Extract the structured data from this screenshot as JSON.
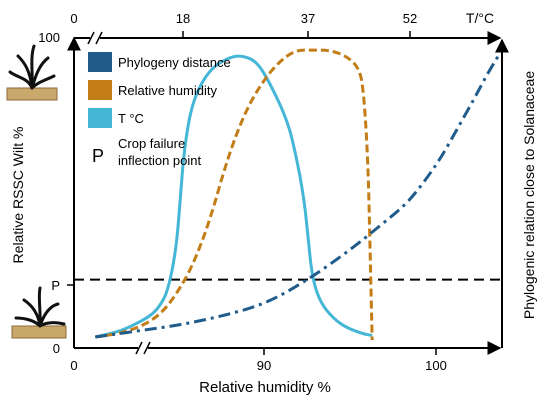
{
  "chart_data": {
    "type": "line",
    "top_axis": {
      "label": "T/°C",
      "ticks": [
        "0",
        "18",
        "37",
        "52"
      ]
    },
    "bottom_axis": {
      "label": "Relative humidity %",
      "ticks": [
        "0",
        "90",
        "100"
      ]
    },
    "left_axis": {
      "label": "Relative RSSC Wilt %",
      "ticks": [
        "100",
        "P",
        "0"
      ]
    },
    "right_axis": {
      "label": "Phylogenic relation close to Solanaceae"
    },
    "legend": {
      "placement": "top-left",
      "entries": [
        {
          "key": "phylogeny",
          "label": "Phylogeny distance",
          "color": "#1f5c8c"
        },
        {
          "key": "humidity",
          "label": "Relative humidity",
          "color": "#c27d16"
        },
        {
          "key": "temperature",
          "label": "T °C",
          "color": "#44b6d6"
        }
      ],
      "p_symbol": "P",
      "p_label_line1": "Crop failure",
      "p_label_line2": "inflection point"
    },
    "inflection_level_percent": 20,
    "series": [
      {
        "key": "temperature",
        "style": "solid",
        "color": "#44b6d6",
        "points": [
          [
            0.05,
            1
          ],
          [
            0.08,
            2
          ],
          [
            0.11,
            3
          ],
          [
            0.14,
            5
          ],
          [
            0.18,
            8
          ],
          [
            0.2,
            11
          ],
          [
            0.22,
            16
          ],
          [
            0.24,
            30
          ],
          [
            0.25,
            48
          ],
          [
            0.26,
            65
          ],
          [
            0.28,
            80
          ],
          [
            0.32,
            90
          ],
          [
            0.37,
            94
          ],
          [
            0.4,
            94
          ],
          [
            0.43,
            92
          ],
          [
            0.46,
            85
          ],
          [
            0.5,
            73
          ],
          [
            0.52,
            62
          ],
          [
            0.54,
            47
          ],
          [
            0.55,
            33
          ],
          [
            0.56,
            20
          ],
          [
            0.58,
            12
          ],
          [
            0.61,
            7
          ],
          [
            0.64,
            4
          ],
          [
            0.68,
            2
          ],
          [
            0.7,
            1.5
          ]
        ]
      },
      {
        "key": "humidity",
        "style": "dashed",
        "color": "#c27d16",
        "points": [
          [
            0.05,
            1
          ],
          [
            0.1,
            2
          ],
          [
            0.15,
            4
          ],
          [
            0.2,
            8
          ],
          [
            0.24,
            15
          ],
          [
            0.28,
            25
          ],
          [
            0.32,
            40
          ],
          [
            0.36,
            60
          ],
          [
            0.4,
            75
          ],
          [
            0.44,
            85
          ],
          [
            0.48,
            92
          ],
          [
            0.52,
            96
          ],
          [
            0.56,
            96
          ],
          [
            0.6,
            96
          ],
          [
            0.64,
            94
          ],
          [
            0.67,
            90
          ],
          [
            0.68,
            82
          ],
          [
            0.69,
            60
          ],
          [
            0.695,
            30
          ],
          [
            0.7,
            0
          ]
        ]
      },
      {
        "key": "phylogeny",
        "style": "dash-dot",
        "color": "#1f5c8c",
        "points": [
          [
            0.05,
            1
          ],
          [
            0.15,
            3
          ],
          [
            0.25,
            5
          ],
          [
            0.35,
            8
          ],
          [
            0.45,
            12
          ],
          [
            0.55,
            20
          ],
          [
            0.65,
            30
          ],
          [
            0.72,
            38
          ],
          [
            0.78,
            45
          ],
          [
            0.82,
            52
          ],
          [
            0.86,
            60
          ],
          [
            0.9,
            70
          ],
          [
            0.94,
            80
          ],
          [
            0.97,
            88
          ],
          [
            1.0,
            95
          ]
        ]
      }
    ]
  }
}
